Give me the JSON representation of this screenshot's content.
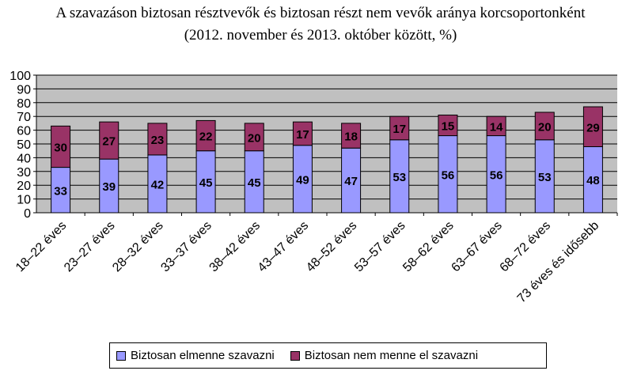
{
  "chart_data": {
    "type": "bar",
    "stacked": true,
    "title": "A szavazáson biztosan résztvevők és biztosan részt nem vevők aránya korcsoportonként",
    "subtitle": "(2012. november és 2013. október között, %)",
    "categories": [
      "18–22 éves",
      "23–27 éves",
      "28–32 éves",
      "33–37 éves",
      "38–42 éves",
      "43–47 éves",
      "48–52 éves",
      "53–57 éves",
      "58–62 éves",
      "63–67 éves",
      "68–72 éves",
      "73 éves és idősebb"
    ],
    "series": [
      {
        "name": "Biztosan elmenne szavazni",
        "color": "#9999ff",
        "values": [
          33,
          39,
          42,
          45,
          45,
          49,
          47,
          53,
          56,
          56,
          53,
          48
        ]
      },
      {
        "name": "Biztosan nem menne el szavazni",
        "color": "#993366",
        "values": [
          30,
          27,
          23,
          22,
          20,
          17,
          18,
          17,
          15,
          14,
          20,
          29
        ]
      }
    ],
    "ylim": [
      0,
      100
    ],
    "yticks": [
      0,
      10,
      20,
      30,
      40,
      50,
      60,
      70,
      80,
      90,
      100
    ],
    "grid": true,
    "plot_background": "#c0c0c0",
    "legend_position": "bottom",
    "data_labels": true
  }
}
